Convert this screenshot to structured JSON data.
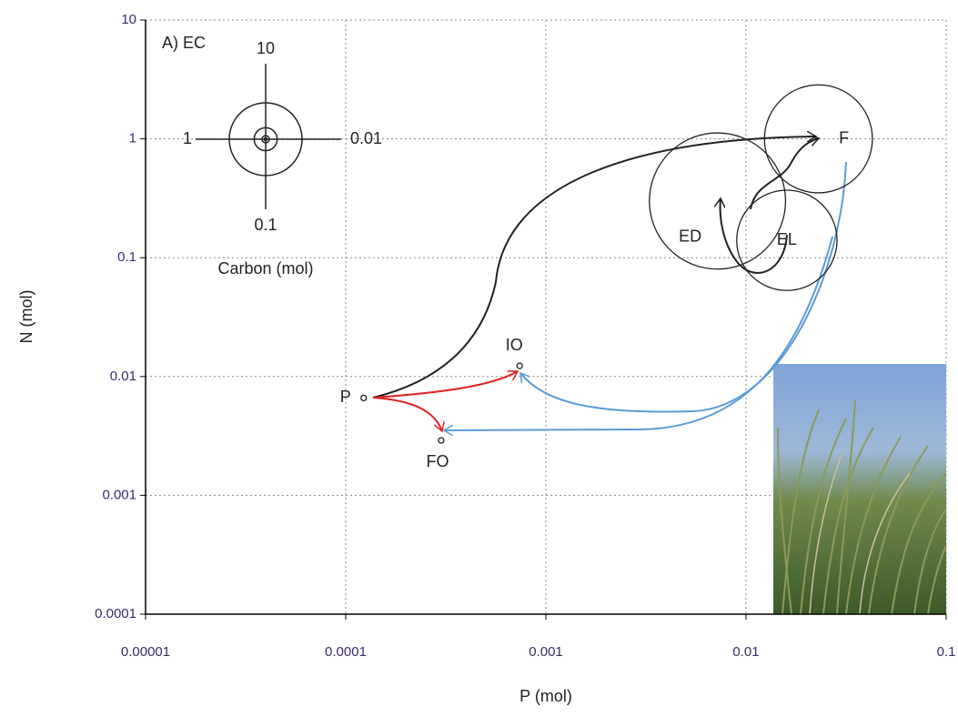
{
  "chart_data": {
    "type": "scatter",
    "annotation": "A) EC",
    "x_label": "P (mol)",
    "y_label": "N (mol)",
    "log_x": true,
    "log_y": true,
    "grid": true,
    "xlim": [
      1e-05,
      0.1
    ],
    "xticks": [
      {
        "value": 1e-05,
        "label": "0.00001"
      },
      0.0001,
      0.001,
      0.01,
      0.1
    ],
    "ylim": [
      0.0001,
      10
    ],
    "yticks": [
      0.0001,
      0.001,
      0.01,
      0.1,
      1,
      10
    ],
    "points": {
      "labels": [
        "P",
        "IO",
        "FO",
        "ED",
        "EL",
        "F"
      ],
      "x": [
        0.000123,
        0.00074,
        0.0003,
        0.0072,
        0.016,
        0.023
      ],
      "y": [
        0.0066,
        0.0123,
        0.0029,
        0.3,
        0.14,
        1
      ],
      "sizes": [
        0.05,
        0.05,
        0.05,
        35,
        19,
        22
      ]
    },
    "size_legend": {
      "title": "Carbon (mol)",
      "sizes": [
        10,
        1,
        0.1,
        0.01
      ]
    }
  }
}
